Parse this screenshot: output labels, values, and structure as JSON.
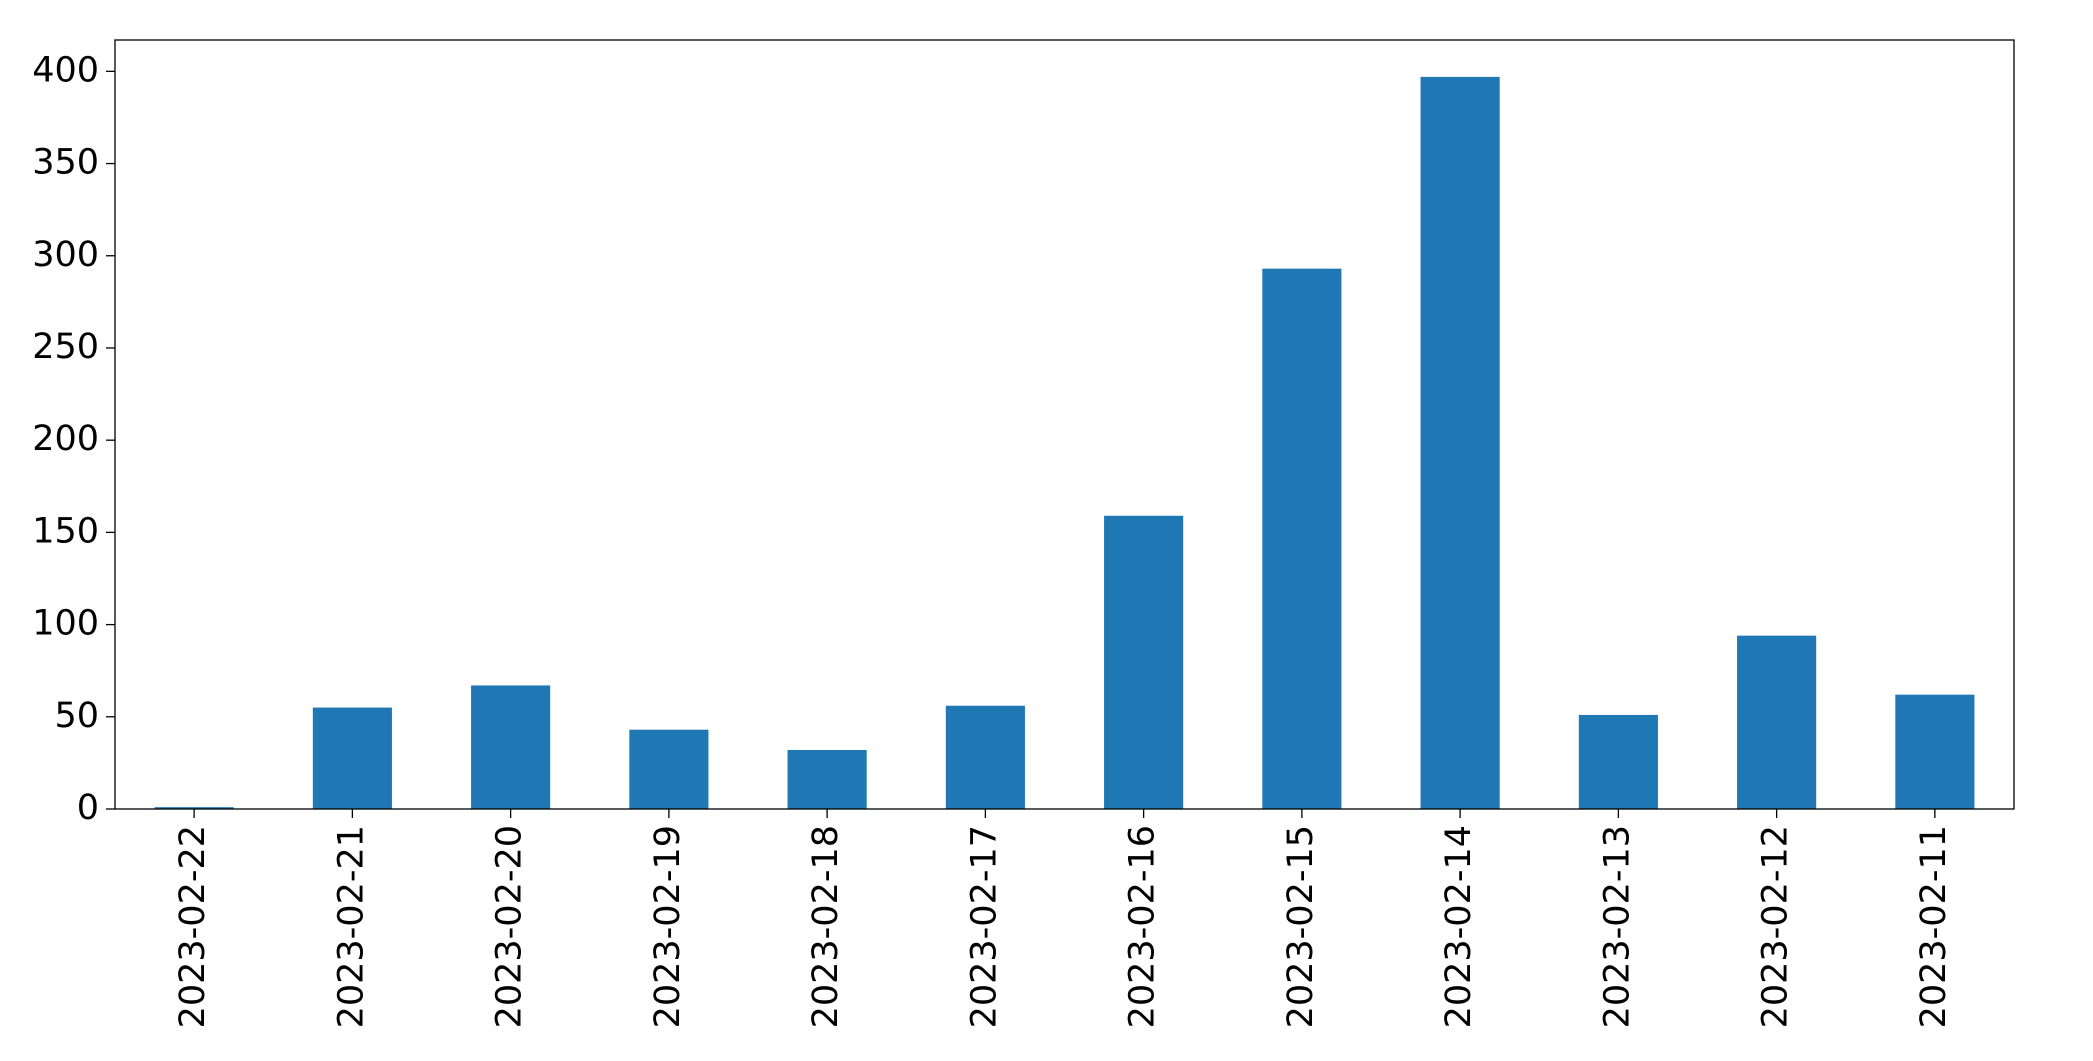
{
  "chart_data": {
    "type": "bar",
    "categories": [
      "2023-02-22",
      "2023-02-21",
      "2023-02-20",
      "2023-02-19",
      "2023-02-18",
      "2023-02-17",
      "2023-02-16",
      "2023-02-15",
      "2023-02-14",
      "2023-02-13",
      "2023-02-12",
      "2023-02-11"
    ],
    "values": [
      1,
      55,
      67,
      43,
      32,
      56,
      159,
      293,
      397,
      51,
      94,
      62
    ],
    "color": "#1f77b4",
    "ylim": [
      0,
      417
    ],
    "yticks": [
      0,
      50,
      100,
      150,
      200,
      250,
      300,
      350,
      400
    ],
    "grid": false
  }
}
